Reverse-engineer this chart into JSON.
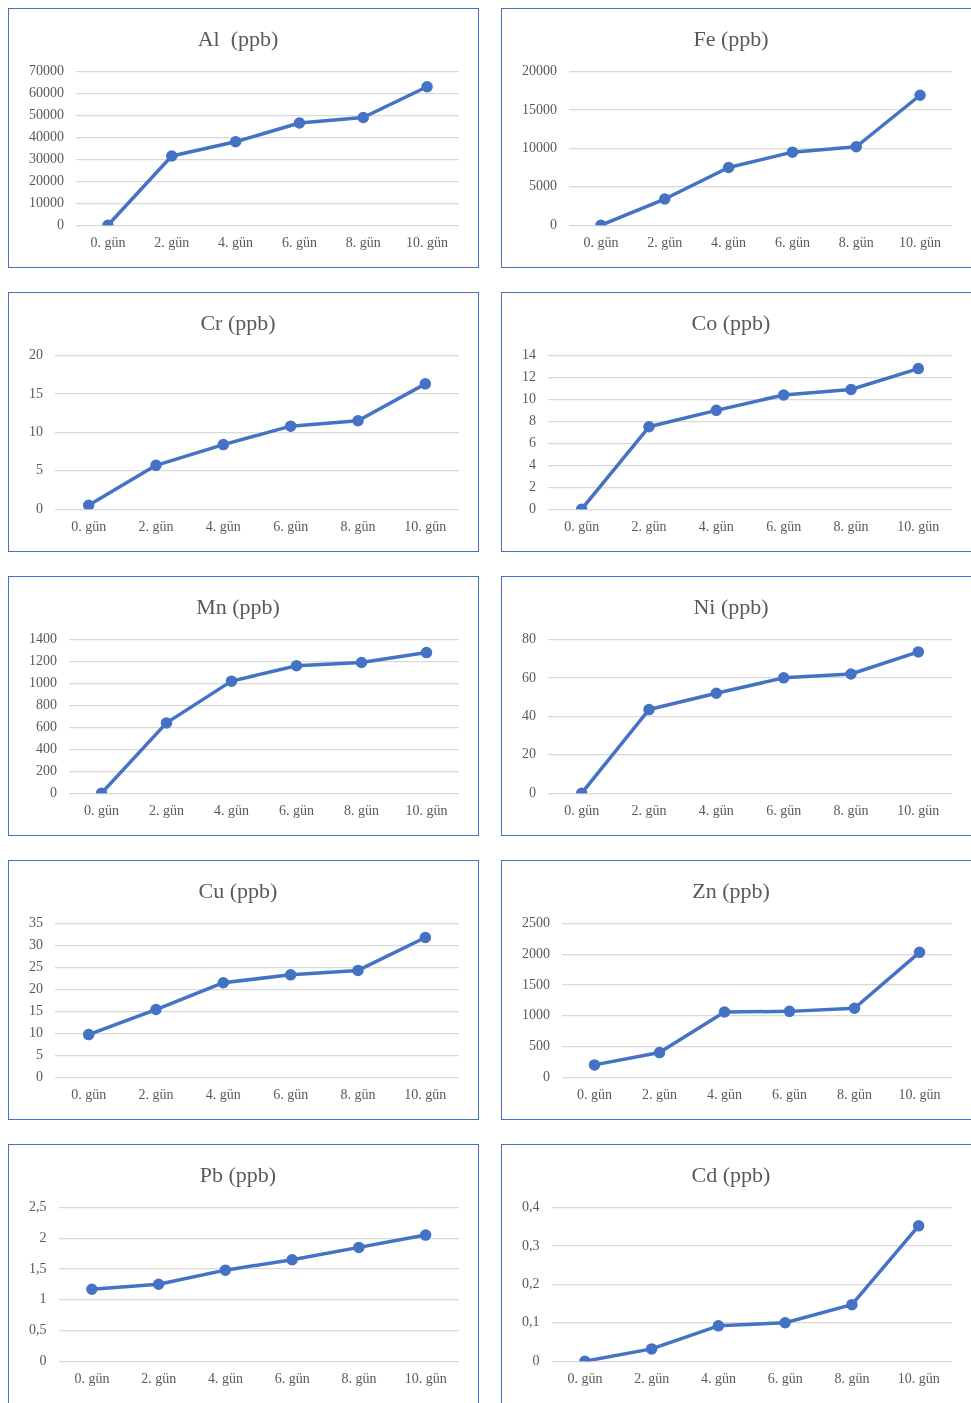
{
  "chart_data": [
    {
      "type": "line",
      "title": "Al  (ppb)",
      "categories": [
        "0. gün",
        "2. gün",
        "4. gün",
        "6. gün",
        "8. gün",
        "10. gün"
      ],
      "series": [
        {
          "color": "#4472c4",
          "values": [
            0,
            31500,
            38000,
            46500,
            49000,
            63000
          ]
        }
      ],
      "ylim": [
        0,
        70000
      ],
      "yticks": [
        0,
        10000,
        20000,
        30000,
        40000,
        50000,
        60000,
        70000
      ],
      "grid": "y",
      "marker": "circle",
      "line_style": "solid"
    },
    {
      "type": "line",
      "title": "Fe (ppb)",
      "categories": [
        "0. gün",
        "2. gün",
        "4. gün",
        "6. gün",
        "8. gün",
        "10. gün"
      ],
      "series": [
        {
          "color": "#4472c4",
          "values": [
            0,
            3400,
            7500,
            9500,
            10200,
            16900
          ]
        }
      ],
      "ylim": [
        0,
        20000
      ],
      "yticks": [
        0,
        5000,
        10000,
        15000,
        20000
      ],
      "grid": "y",
      "marker": "circle",
      "line_style": "solid"
    },
    {
      "type": "line",
      "title": "Cr (ppb)",
      "categories": [
        "0. gün",
        "2. gün",
        "4. gün",
        "6. gün",
        "8. gün",
        "10. gün"
      ],
      "series": [
        {
          "color": "#4472c4",
          "values": [
            0.5,
            5.7,
            8.4,
            10.8,
            11.5,
            16.3
          ]
        }
      ],
      "ylim": [
        0,
        20
      ],
      "yticks": [
        0,
        5,
        10,
        15,
        20
      ],
      "grid": "y",
      "marker": "circle",
      "line_style": "solid"
    },
    {
      "type": "line",
      "title": "Co (ppb)",
      "categories": [
        "0. gün",
        "2. gün",
        "4. gün",
        "6. gün",
        "8. gün",
        "10. gün"
      ],
      "series": [
        {
          "color": "#4472c4",
          "values": [
            0,
            7.5,
            9.0,
            10.4,
            10.9,
            12.8
          ]
        }
      ],
      "ylim": [
        0,
        14
      ],
      "yticks": [
        0,
        2,
        4,
        6,
        8,
        10,
        12,
        14
      ],
      "grid": "y",
      "marker": "circle",
      "line_style": "solid"
    },
    {
      "type": "line",
      "title": "Mn (ppb)",
      "categories": [
        "0. gün",
        "2. gün",
        "4. gün",
        "6. gün",
        "8. gün",
        "10. gün"
      ],
      "series": [
        {
          "color": "#4472c4",
          "values": [
            0,
            640,
            1020,
            1160,
            1190,
            1280
          ]
        }
      ],
      "ylim": [
        0,
        1400
      ],
      "yticks": [
        0,
        200,
        400,
        600,
        800,
        1000,
        1200,
        1400
      ],
      "grid": "y",
      "marker": "circle",
      "line_style": "solid"
    },
    {
      "type": "line",
      "title": "Ni (ppb)",
      "categories": [
        "0. gün",
        "2. gün",
        "4. gün",
        "6. gün",
        "8. gün",
        "10. gün"
      ],
      "series": [
        {
          "color": "#4472c4",
          "values": [
            0,
            43.5,
            52,
            60,
            62,
            73.5
          ]
        }
      ],
      "ylim": [
        0,
        80
      ],
      "yticks": [
        0,
        20,
        40,
        60,
        80
      ],
      "grid": "y",
      "marker": "circle",
      "line_style": "solid"
    },
    {
      "type": "line",
      "title": "Cu (ppb)",
      "categories": [
        "0. gün",
        "2. gün",
        "4. gün",
        "6. gün",
        "8. gün",
        "10. gün"
      ],
      "series": [
        {
          "color": "#4472c4",
          "values": [
            9.7,
            15.4,
            21.5,
            23.3,
            24.3,
            31.8
          ]
        }
      ],
      "ylim": [
        0,
        35
      ],
      "yticks": [
        0,
        5,
        10,
        15,
        20,
        25,
        30,
        35
      ],
      "grid": "y",
      "marker": "circle",
      "line_style": "solid"
    },
    {
      "type": "line",
      "title": "Zn (ppb)",
      "categories": [
        "0. gün",
        "2. gün",
        "4. gün",
        "6. gün",
        "8. gün",
        "10. gün"
      ],
      "series": [
        {
          "color": "#4472c4",
          "values": [
            200,
            400,
            1060,
            1070,
            1120,
            2030
          ]
        }
      ],
      "ylim": [
        0,
        2500
      ],
      "yticks": [
        0,
        500,
        1000,
        1500,
        2000,
        2500
      ],
      "grid": "y",
      "marker": "circle",
      "line_style": "solid"
    },
    {
      "type": "line",
      "title": "Pb (ppb)",
      "categories": [
        "0. gün",
        "2. gün",
        "4. gün",
        "6. gün",
        "8. gün",
        "10. gün"
      ],
      "series": [
        {
          "color": "#4472c4",
          "values": [
            1.17,
            1.25,
            1.48,
            1.65,
            1.85,
            2.05
          ]
        }
      ],
      "ylim": [
        0,
        2.5
      ],
      "yticks": [
        0,
        {
          "value": 0.5,
          "label": "0,5"
        },
        1,
        {
          "value": 1.5,
          "label": "1,5"
        },
        2,
        {
          "value": 2.5,
          "label": "2,5"
        }
      ],
      "grid": "y",
      "marker": "circle",
      "line_style": "solid"
    },
    {
      "type": "line",
      "title": "Cd (ppb)",
      "categories": [
        "0. gün",
        "2. gün",
        "4. gün",
        "6. gün",
        "8. gün",
        "10. gün"
      ],
      "series": [
        {
          "color": "#4472c4",
          "values": [
            0,
            0.032,
            0.092,
            0.1,
            0.147,
            0.352
          ]
        }
      ],
      "ylim": [
        0,
        0.4
      ],
      "yticks": [
        0,
        {
          "value": 0.1,
          "label": "0,1"
        },
        {
          "value": 0.2,
          "label": "0,2"
        },
        {
          "value": 0.3,
          "label": "0,3"
        },
        {
          "value": 0.4,
          "label": "0,4"
        }
      ],
      "grid": "y",
      "marker": "circle",
      "line_style": "solid"
    }
  ]
}
